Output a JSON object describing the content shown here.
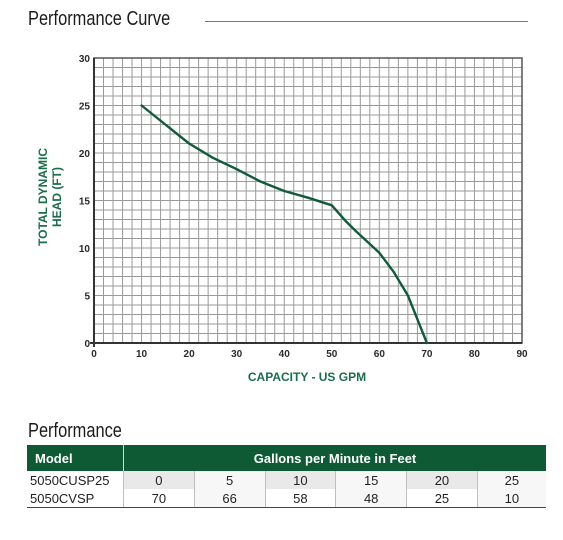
{
  "header": {
    "chart_title": "Performance Curve",
    "table_title": "Performance"
  },
  "colors": {
    "curve": "#0f5b3a",
    "grid": "#9a9a9a",
    "axis_label": "#1a6e4b",
    "table_header_bg": "#0e5a35"
  },
  "chart_data": {
    "type": "line",
    "title": "Performance Curve",
    "xlabel": "CAPACITY - US GPM",
    "ylabel": "TOTAL DYNAMIC HEAD (FT)",
    "xlim": [
      0,
      90
    ],
    "ylim": [
      0,
      30
    ],
    "xticks": [
      0,
      10,
      20,
      30,
      40,
      50,
      60,
      70,
      80,
      90
    ],
    "yticks": [
      0,
      5,
      10,
      15,
      20,
      25,
      30
    ],
    "grid": true,
    "series": [
      {
        "x": [
          10,
          15,
          20,
          25,
          30,
          35,
          40,
          45,
          50,
          53,
          55,
          60,
          63,
          66,
          68,
          70
        ],
        "y": [
          25,
          23,
          21,
          19.5,
          18.3,
          17,
          16,
          15.3,
          14.5,
          12.8,
          11.8,
          9.5,
          7.5,
          5,
          2.5,
          0
        ]
      }
    ]
  },
  "table": {
    "headers": [
      "Model",
      "Gallons per Minute in Feet"
    ],
    "models": [
      "5050CUSP25",
      "5050CVSP"
    ],
    "feet": [
      "0",
      "5",
      "10",
      "15",
      "20",
      "25"
    ],
    "gpm": [
      "70",
      "66",
      "58",
      "48",
      "25",
      "10"
    ]
  }
}
